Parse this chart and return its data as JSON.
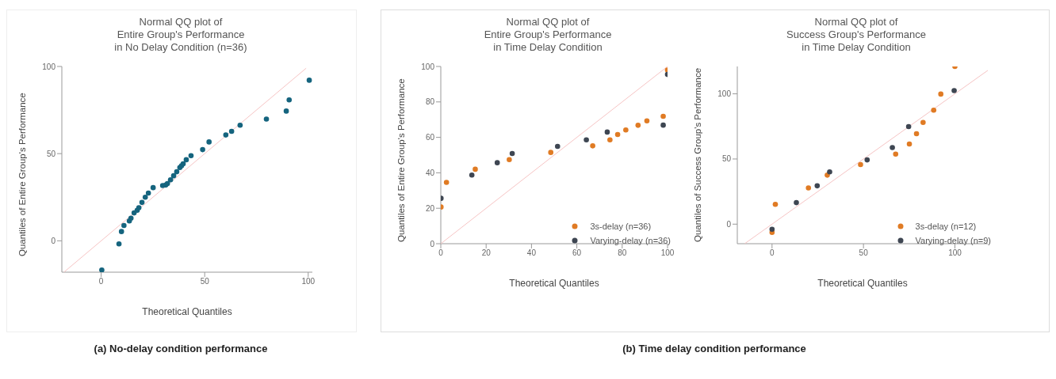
{
  "chart_data": [
    {
      "type": "scatter",
      "title": "Normal QQ plot of\nEntire Group's Performance\nin No Delay Condition (n=36)",
      "xlabel": "Theoretical Quantiles",
      "ylabel": "Quantiles of Entire Group's Performance",
      "xlim": [
        -19,
        102
      ],
      "ylim": [
        -18,
        100
      ],
      "xticks": [
        0,
        50,
        100
      ],
      "yticks": [
        0,
        50,
        100
      ],
      "legend": false,
      "marker": "circle",
      "annotations": [
        "(a) No-delay condition performance"
      ],
      "series": [
        {
          "type": "line",
          "marker": "none",
          "color": "#f6c4c4",
          "x": [
            -18,
            99
          ],
          "values": [
            -18,
            99
          ]
        },
        {
          "color": "#15647e",
          "x": [
            0.3,
            8.6,
            9.8,
            11,
            13.6,
            14.4,
            15.9,
            17.4,
            18.2,
            19.7,
            21.3,
            22.8,
            25.1,
            29.7,
            31.2,
            32,
            33.5,
            35,
            36.5,
            38,
            38.8,
            39.6,
            41.1,
            43.4,
            49,
            52.1,
            60.2,
            63,
            67.1,
            79.8,
            89.4,
            90.8,
            100.5
          ],
          "values": [
            -16.8,
            -1.8,
            5.3,
            8.8,
            11.4,
            13,
            16,
            17.5,
            19,
            22,
            25,
            27.4,
            30.5,
            31.7,
            32,
            32.8,
            35,
            37.3,
            39.6,
            42,
            43,
            44.2,
            46.5,
            48.8,
            52.3,
            56.7,
            60.7,
            62.8,
            66.3,
            69.8,
            74.4,
            80.8,
            92.1
          ]
        }
      ]
    },
    {
      "type": "scatter",
      "title": "Normal QQ plot of\nEntire Group's Performance\nin Time Delay Condition",
      "xlabel": "Theoretical Quantiles",
      "ylabel": "Quantiles of Entire Group's Performance",
      "xlim": [
        0,
        100
      ],
      "ylim": [
        0,
        100
      ],
      "xticks": [
        0,
        20,
        40,
        60,
        80,
        100
      ],
      "yticks": [
        0,
        20,
        40,
        60,
        80,
        100
      ],
      "legend": "bottom right",
      "marker": "circle",
      "annotations": [
        "(b) Time delay condition performance"
      ],
      "series": [
        {
          "type": "line",
          "marker": "none",
          "color": "#f6c4c4",
          "x": [
            0,
            100
          ],
          "values": [
            0,
            100
          ]
        },
        {
          "name": "3s-delay (n=36)",
          "color": "#e07b24",
          "x": [
            0.1,
            2.5,
            15.2,
            30.2,
            48.5,
            67,
            74.6,
            78,
            81.6,
            87,
            90.9,
            98.1,
            100
          ],
          "values": [
            20.7,
            34.6,
            42,
            47.4,
            51.5,
            55.2,
            58.6,
            61.6,
            64.2,
            66.8,
            69.3,
            71.9,
            98
          ]
        },
        {
          "name": "Varying-delay (n=36)",
          "color": "#3e4652",
          "x": [
            0.1,
            13.7,
            24.9,
            31.5,
            51.5,
            64.2,
            73.4,
            98.1,
            100
          ],
          "values": [
            25.6,
            38.7,
            45.7,
            50.9,
            54.9,
            58.6,
            63,
            66.9,
            95.5
          ]
        }
      ]
    },
    {
      "type": "scatter",
      "title": "Normal QQ plot of\nSuccess Group's Performance\nin Time Delay Condition",
      "xlabel": "Theoretical Quantiles",
      "ylabel": "Quantiles of Success Group's Performance",
      "xlim": [
        -19,
        118
      ],
      "ylim": [
        -15,
        121
      ],
      "xticks": [
        0,
        50,
        100
      ],
      "yticks": [
        0,
        50,
        100
      ],
      "legend": "bottom right",
      "marker": "circle",
      "series": [
        {
          "type": "line",
          "marker": "none",
          "color": "#f6c4c4",
          "x": [
            -15,
            118
          ],
          "values": [
            -15,
            118
          ]
        },
        {
          "name": "3s-delay (n=12)",
          "color": "#e07b24",
          "x": [
            0,
            1.8,
            19.9,
            30.2,
            48.4,
            67.6,
            75.1,
            79,
            82.6,
            88.4,
            92.3,
            100
          ],
          "values": [
            -6.3,
            15.2,
            27.8,
            37.6,
            45.7,
            53.8,
            61.5,
            69.4,
            78,
            87.5,
            99.8,
            121
          ]
        },
        {
          "name": "Varying-delay (n=9)",
          "color": "#3e4652",
          "x": [
            0,
            13.3,
            24.7,
            31.5,
            52,
            65.8,
            74.7,
            99.6
          ],
          "values": [
            -3.9,
            16.5,
            29.4,
            40.1,
            49.3,
            58.8,
            74.9,
            102.5
          ]
        }
      ]
    }
  ]
}
